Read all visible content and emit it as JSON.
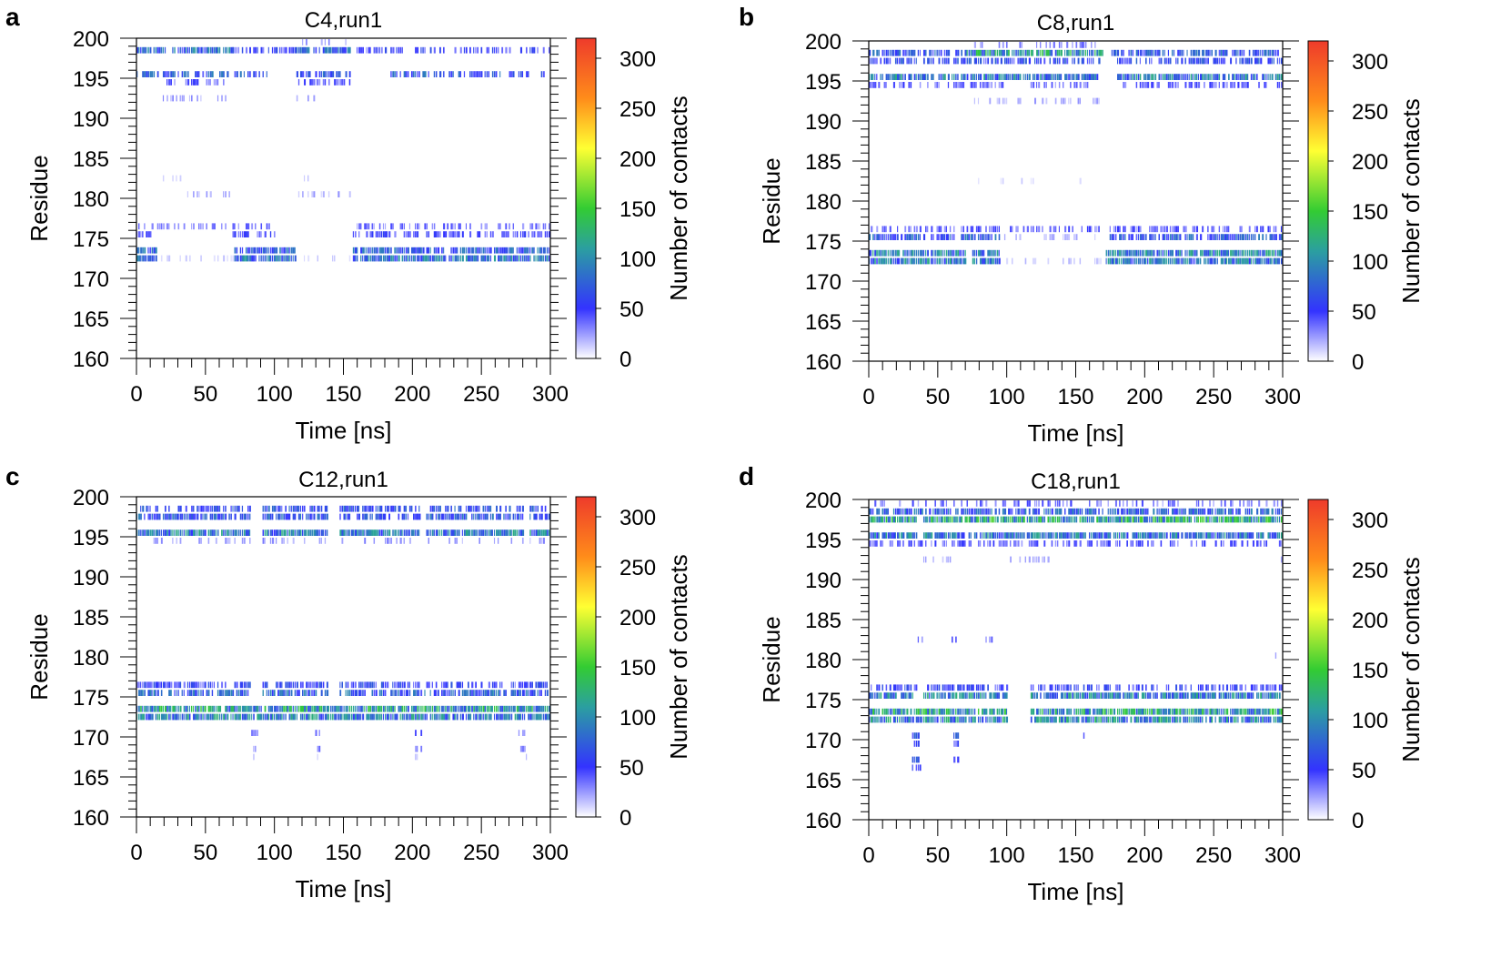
{
  "colorbar": {
    "label": "Number of contacts",
    "min": 0,
    "max": 320,
    "ticks": [
      0,
      50,
      100,
      150,
      200,
      250,
      300
    ],
    "stops": [
      "#ffffff",
      "#3333ff",
      "#2b9fa0",
      "#33cc33",
      "#ffff33",
      "#ff8c1a",
      "#ee3b2b"
    ]
  },
  "chart_data": [
    {
      "type": "heatmap",
      "panel": "a",
      "title": "C4,run1",
      "xlabel": "Time [ns]",
      "ylabel": "Residue",
      "xlim": [
        0,
        300
      ],
      "ylim": [
        160,
        200
      ],
      "xticks": [
        0,
        50,
        100,
        150,
        200,
        250,
        300
      ],
      "yticks": [
        160,
        165,
        170,
        175,
        180,
        185,
        190,
        195,
        200
      ],
      "value_range": [
        0,
        320
      ],
      "bands": [
        {
          "residue": 198,
          "value": 80,
          "density": 0.85,
          "spans": [
            [
              0,
              70
            ],
            [
              115,
              155
            ]
          ]
        },
        {
          "residue": 198,
          "value": 50,
          "density": 0.45,
          "spans": [
            [
              70,
              115
            ],
            [
              155,
              300
            ]
          ]
        },
        {
          "residue": 199,
          "value": 25,
          "density": 0.3,
          "spans": [
            [
              120,
              155
            ]
          ]
        },
        {
          "residue": 195,
          "value": 70,
          "density": 0.6,
          "spans": [
            [
              0,
              100
            ],
            [
              115,
              155
            ],
            [
              185,
              295
            ]
          ]
        },
        {
          "residue": 194,
          "value": 40,
          "density": 0.4,
          "spans": [
            [
              15,
              65
            ],
            [
              115,
              155
            ]
          ]
        },
        {
          "residue": 192,
          "value": 25,
          "density": 0.35,
          "spans": [
            [
              15,
              65
            ],
            [
              115,
              135
            ]
          ]
        },
        {
          "residue": 182,
          "value": 15,
          "density": 0.25,
          "spans": [
            [
              20,
              45
            ],
            [
              118,
              125
            ]
          ]
        },
        {
          "residue": 180,
          "value": 20,
          "density": 0.3,
          "spans": [
            [
              20,
              70
            ],
            [
              115,
              155
            ]
          ]
        },
        {
          "residue": 176,
          "value": 35,
          "density": 0.5,
          "spans": [
            [
              0,
              70
            ],
            [
              70,
              100
            ],
            [
              157,
              300
            ]
          ]
        },
        {
          "residue": 175,
          "value": 45,
          "density": 0.55,
          "spans": [
            [
              0,
              10
            ],
            [
              70,
              100
            ],
            [
              157,
              300
            ]
          ]
        },
        {
          "residue": 173,
          "value": 75,
          "density": 0.85,
          "spans": [
            [
              0,
              15
            ],
            [
              72,
              115
            ],
            [
              157,
              300
            ]
          ]
        },
        {
          "residue": 172,
          "value": 85,
          "density": 0.9,
          "spans": [
            [
              0,
              15
            ],
            [
              72,
              115
            ],
            [
              157,
              300
            ]
          ]
        },
        {
          "residue": 172,
          "value": 12,
          "density": 0.2,
          "spans": [
            [
              15,
              72
            ],
            [
              115,
              157
            ]
          ]
        }
      ]
    },
    {
      "type": "heatmap",
      "panel": "b",
      "title": "C8,run1",
      "xlabel": "Time [ns]",
      "ylabel": "Residue",
      "xlim": [
        0,
        300
      ],
      "ylim": [
        160,
        200
      ],
      "xticks": [
        0,
        50,
        100,
        150,
        200,
        250,
        300
      ],
      "yticks": [
        160,
        165,
        170,
        175,
        180,
        185,
        190,
        195,
        200
      ],
      "value_range": [
        0,
        320
      ],
      "bands": [
        {
          "residue": 199,
          "value": 30,
          "density": 0.4,
          "spans": [
            [
              75,
              175
            ]
          ]
        },
        {
          "residue": 198,
          "value": 70,
          "density": 0.75,
          "spans": [
            [
              0,
              70
            ],
            [
              175,
              300
            ]
          ]
        },
        {
          "residue": 198,
          "value": 110,
          "density": 0.9,
          "spans": [
            [
              72,
              170
            ]
          ]
        },
        {
          "residue": 197,
          "value": 60,
          "density": 0.7,
          "spans": [
            [
              0,
              70
            ],
            [
              72,
              170
            ],
            [
              180,
              300
            ]
          ]
        },
        {
          "residue": 195,
          "value": 90,
          "density": 0.9,
          "spans": [
            [
              0,
              70
            ],
            [
              72,
              165
            ],
            [
              180,
              300
            ]
          ]
        },
        {
          "residue": 194,
          "value": 40,
          "density": 0.5,
          "spans": [
            [
              0,
              70
            ],
            [
              72,
              165
            ],
            [
              180,
              300
            ]
          ]
        },
        {
          "residue": 192,
          "value": 20,
          "density": 0.3,
          "spans": [
            [
              70,
              170
            ]
          ]
        },
        {
          "residue": 182,
          "value": 12,
          "density": 0.15,
          "spans": [
            [
              75,
              170
            ]
          ]
        },
        {
          "residue": 176,
          "value": 40,
          "density": 0.5,
          "spans": [
            [
              0,
              70
            ],
            [
              72,
              170
            ],
            [
              175,
              300
            ]
          ]
        },
        {
          "residue": 175,
          "value": 70,
          "density": 0.75,
          "spans": [
            [
              0,
              70
            ],
            [
              72,
              95
            ],
            [
              175,
              300
            ]
          ]
        },
        {
          "residue": 175,
          "value": 20,
          "density": 0.3,
          "spans": [
            [
              95,
              170
            ]
          ]
        },
        {
          "residue": 173,
          "value": 95,
          "density": 0.95,
          "spans": [
            [
              0,
              70
            ],
            [
              75,
              95
            ],
            [
              172,
              300
            ]
          ]
        },
        {
          "residue": 172,
          "value": 90,
          "density": 0.95,
          "spans": [
            [
              0,
              70
            ],
            [
              75,
              95
            ],
            [
              172,
              300
            ]
          ]
        },
        {
          "residue": 172,
          "value": 15,
          "density": 0.25,
          "spans": [
            [
              95,
              172
            ]
          ]
        }
      ]
    },
    {
      "type": "heatmap",
      "panel": "c",
      "title": "C12,run1",
      "xlabel": "Time [ns]",
      "ylabel": "Residue",
      "xlim": [
        0,
        300
      ],
      "ylim": [
        160,
        200
      ],
      "xticks": [
        0,
        50,
        100,
        150,
        200,
        250,
        300
      ],
      "yticks": [
        160,
        165,
        170,
        175,
        180,
        185,
        190,
        195,
        200
      ],
      "value_range": [
        0,
        320
      ],
      "bands": [
        {
          "residue": 198,
          "value": 65,
          "density": 0.75,
          "spans": [
            [
              0,
              82
            ],
            [
              92,
              138
            ],
            [
              148,
              205
            ],
            [
              210,
              280
            ],
            [
              285,
              300
            ]
          ]
        },
        {
          "residue": 197,
          "value": 70,
          "density": 0.8,
          "spans": [
            [
              0,
              82
            ],
            [
              92,
              138
            ],
            [
              148,
              205
            ],
            [
              210,
              280
            ],
            [
              285,
              300
            ]
          ]
        },
        {
          "residue": 195,
          "value": 90,
          "density": 0.95,
          "spans": [
            [
              0,
              82
            ],
            [
              92,
              138
            ],
            [
              148,
              205
            ],
            [
              210,
              280
            ],
            [
              285,
              300
            ]
          ]
        },
        {
          "residue": 194,
          "value": 25,
          "density": 0.3,
          "spans": [
            [
              0,
              82
            ],
            [
              92,
              138
            ],
            [
              148,
              205
            ],
            [
              210,
              280
            ],
            [
              285,
              300
            ]
          ]
        },
        {
          "residue": 182,
          "value": 20,
          "density": 0.4,
          "spans": [
            [
              85,
              88
            ]
          ]
        },
        {
          "residue": 176,
          "value": 55,
          "density": 0.7,
          "spans": [
            [
              0,
              82
            ],
            [
              92,
              138
            ],
            [
              148,
              300
            ]
          ]
        },
        {
          "residue": 175,
          "value": 75,
          "density": 0.8,
          "spans": [
            [
              0,
              82
            ],
            [
              92,
              138
            ],
            [
              148,
              300
            ]
          ]
        },
        {
          "residue": 173,
          "value": 110,
          "density": 0.95,
          "spans": [
            [
              0,
              300
            ]
          ]
        },
        {
          "residue": 172,
          "value": 95,
          "density": 0.95,
          "spans": [
            [
              0,
              300
            ]
          ]
        },
        {
          "residue": 170,
          "value": 40,
          "density": 0.6,
          "spans": [
            [
              84,
              88
            ],
            [
              130,
              133
            ],
            [
              203,
              206
            ],
            [
              278,
              283
            ]
          ]
        },
        {
          "residue": 168,
          "value": 30,
          "density": 0.5,
          "spans": [
            [
              85,
              88
            ],
            [
              130,
              133
            ],
            [
              203,
              206
            ],
            [
              279,
              283
            ]
          ]
        },
        {
          "residue": 167,
          "value": 20,
          "density": 0.4,
          "spans": [
            [
              85,
              88
            ],
            [
              130,
              133
            ],
            [
              203,
              206
            ],
            [
              279,
              283
            ]
          ]
        }
      ]
    },
    {
      "type": "heatmap",
      "panel": "d",
      "title": "C18,run1",
      "xlabel": "Time [ns]",
      "ylabel": "Residue",
      "xlim": [
        0,
        300
      ],
      "ylim": [
        160,
        200
      ],
      "xticks": [
        0,
        50,
        100,
        150,
        200,
        250,
        300
      ],
      "yticks": [
        160,
        165,
        170,
        175,
        180,
        185,
        190,
        195,
        200
      ],
      "value_range": [
        0,
        320
      ],
      "bands": [
        {
          "residue": 199,
          "value": 35,
          "density": 0.4,
          "spans": [
            [
              0,
              300
            ]
          ]
        },
        {
          "residue": 198,
          "value": 75,
          "density": 0.8,
          "spans": [
            [
              0,
              300
            ]
          ]
        },
        {
          "residue": 197,
          "value": 120,
          "density": 0.95,
          "spans": [
            [
              0,
              35
            ],
            [
              40,
              300
            ]
          ]
        },
        {
          "residue": 195,
          "value": 90,
          "density": 0.9,
          "spans": [
            [
              0,
              35
            ],
            [
              40,
              300
            ]
          ]
        },
        {
          "residue": 194,
          "value": 40,
          "density": 0.5,
          "spans": [
            [
              0,
              300
            ]
          ]
        },
        {
          "residue": 192,
          "value": 20,
          "density": 0.3,
          "spans": [
            [
              40,
              60
            ],
            [
              100,
              130
            ],
            [
              295,
              300
            ]
          ]
        },
        {
          "residue": 182,
          "value": 35,
          "density": 0.5,
          "spans": [
            [
              35,
              40
            ],
            [
              60,
              65
            ],
            [
              85,
              90
            ],
            [
              100,
              105
            ]
          ]
        },
        {
          "residue": 180,
          "value": 20,
          "density": 0.3,
          "spans": [
            [
              100,
              110
            ],
            [
              295,
              300
            ]
          ]
        },
        {
          "residue": 176,
          "value": 50,
          "density": 0.6,
          "spans": [
            [
              0,
              35
            ],
            [
              40,
              100
            ],
            [
              118,
              300
            ]
          ]
        },
        {
          "residue": 175,
          "value": 95,
          "density": 0.9,
          "spans": [
            [
              0,
              35
            ],
            [
              40,
              100
            ],
            [
              118,
              300
            ]
          ]
        },
        {
          "residue": 173,
          "value": 115,
          "density": 0.95,
          "spans": [
            [
              0,
              100
            ],
            [
              118,
              300
            ]
          ]
        },
        {
          "residue": 172,
          "value": 100,
          "density": 0.95,
          "spans": [
            [
              0,
              100
            ],
            [
              118,
              300
            ]
          ]
        },
        {
          "residue": 170,
          "value": 60,
          "density": 0.7,
          "spans": [
            [
              32,
              38
            ],
            [
              62,
              65
            ],
            [
              153,
              156
            ]
          ]
        },
        {
          "residue": 169,
          "value": 45,
          "density": 0.6,
          "spans": [
            [
              32,
              38
            ],
            [
              62,
              65
            ]
          ]
        },
        {
          "residue": 167,
          "value": 60,
          "density": 0.7,
          "spans": [
            [
              32,
              38
            ],
            [
              62,
              65
            ]
          ]
        },
        {
          "residue": 166,
          "value": 45,
          "density": 0.6,
          "spans": [
            [
              32,
              38
            ]
          ]
        }
      ]
    }
  ]
}
